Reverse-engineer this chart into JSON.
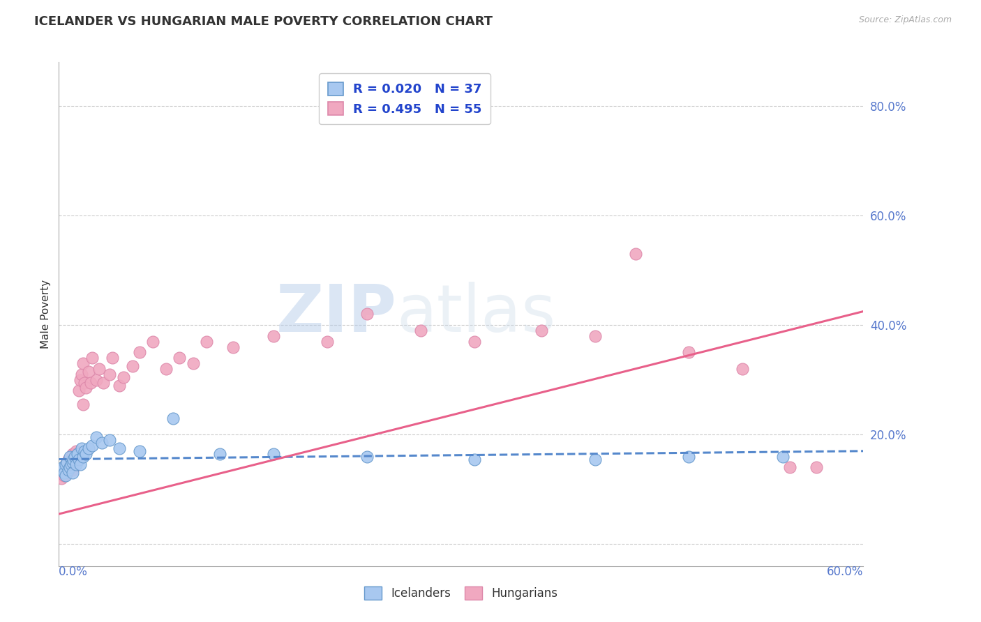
{
  "title": "ICELANDER VS HUNGARIAN MALE POVERTY CORRELATION CHART",
  "source": "Source: ZipAtlas.com",
  "ylabel": "Male Poverty",
  "xlim": [
    0.0,
    0.6
  ],
  "ylim": [
    -0.04,
    0.88
  ],
  "yticks": [
    0.0,
    0.2,
    0.4,
    0.6,
    0.8
  ],
  "ytick_labels": [
    "",
    "20.0%",
    "40.0%",
    "60.0%",
    "80.0%"
  ],
  "icelanders_color": "#a8c8f0",
  "icelanders_edge": "#6699cc",
  "hungarians_color": "#f0a8c0",
  "hungarians_edge": "#dd88aa",
  "icelanders_line_color": "#5588cc",
  "hungarians_line_color": "#e8608a",
  "watermark_zip": "ZIP",
  "watermark_atlas": "atlas",
  "legend_r1": "R = 0.020",
  "legend_n1": "N = 37",
  "legend_r2": "R = 0.495",
  "legend_n2": "N = 55",
  "icelanders_x": [
    0.002,
    0.003,
    0.004,
    0.005,
    0.005,
    0.006,
    0.007,
    0.008,
    0.008,
    0.009,
    0.01,
    0.01,
    0.011,
    0.012,
    0.013,
    0.014,
    0.015,
    0.016,
    0.017,
    0.018,
    0.019,
    0.02,
    0.022,
    0.025,
    0.028,
    0.032,
    0.038,
    0.045,
    0.06,
    0.085,
    0.12,
    0.16,
    0.23,
    0.31,
    0.4,
    0.47,
    0.54
  ],
  "icelanders_y": [
    0.135,
    0.14,
    0.13,
    0.145,
    0.125,
    0.15,
    0.135,
    0.14,
    0.16,
    0.145,
    0.15,
    0.13,
    0.155,
    0.16,
    0.145,
    0.165,
    0.155,
    0.145,
    0.175,
    0.16,
    0.17,
    0.165,
    0.175,
    0.18,
    0.195,
    0.185,
    0.19,
    0.175,
    0.17,
    0.23,
    0.165,
    0.165,
    0.16,
    0.155,
    0.155,
    0.16,
    0.16
  ],
  "hungarians_x": [
    0.001,
    0.002,
    0.003,
    0.004,
    0.004,
    0.005,
    0.006,
    0.007,
    0.007,
    0.008,
    0.009,
    0.01,
    0.01,
    0.011,
    0.012,
    0.013,
    0.013,
    0.014,
    0.015,
    0.016,
    0.017,
    0.018,
    0.018,
    0.019,
    0.02,
    0.022,
    0.024,
    0.025,
    0.028,
    0.03,
    0.033,
    0.038,
    0.04,
    0.045,
    0.048,
    0.055,
    0.06,
    0.07,
    0.08,
    0.09,
    0.1,
    0.11,
    0.13,
    0.16,
    0.2,
    0.23,
    0.27,
    0.31,
    0.36,
    0.4,
    0.43,
    0.47,
    0.51,
    0.545,
    0.565
  ],
  "hungarians_y": [
    0.13,
    0.12,
    0.135,
    0.14,
    0.125,
    0.145,
    0.13,
    0.14,
    0.155,
    0.145,
    0.15,
    0.135,
    0.165,
    0.155,
    0.16,
    0.17,
    0.155,
    0.165,
    0.28,
    0.3,
    0.31,
    0.255,
    0.33,
    0.295,
    0.285,
    0.315,
    0.295,
    0.34,
    0.3,
    0.32,
    0.295,
    0.31,
    0.34,
    0.29,
    0.305,
    0.325,
    0.35,
    0.37,
    0.32,
    0.34,
    0.33,
    0.37,
    0.36,
    0.38,
    0.37,
    0.42,
    0.39,
    0.37,
    0.39,
    0.38,
    0.53,
    0.35,
    0.32,
    0.14,
    0.14
  ],
  "ice_trend_x": [
    0.0,
    0.6
  ],
  "ice_trend_y": [
    0.155,
    0.17
  ],
  "hun_trend_x": [
    0.0,
    0.6
  ],
  "hun_trend_y": [
    0.055,
    0.425
  ]
}
